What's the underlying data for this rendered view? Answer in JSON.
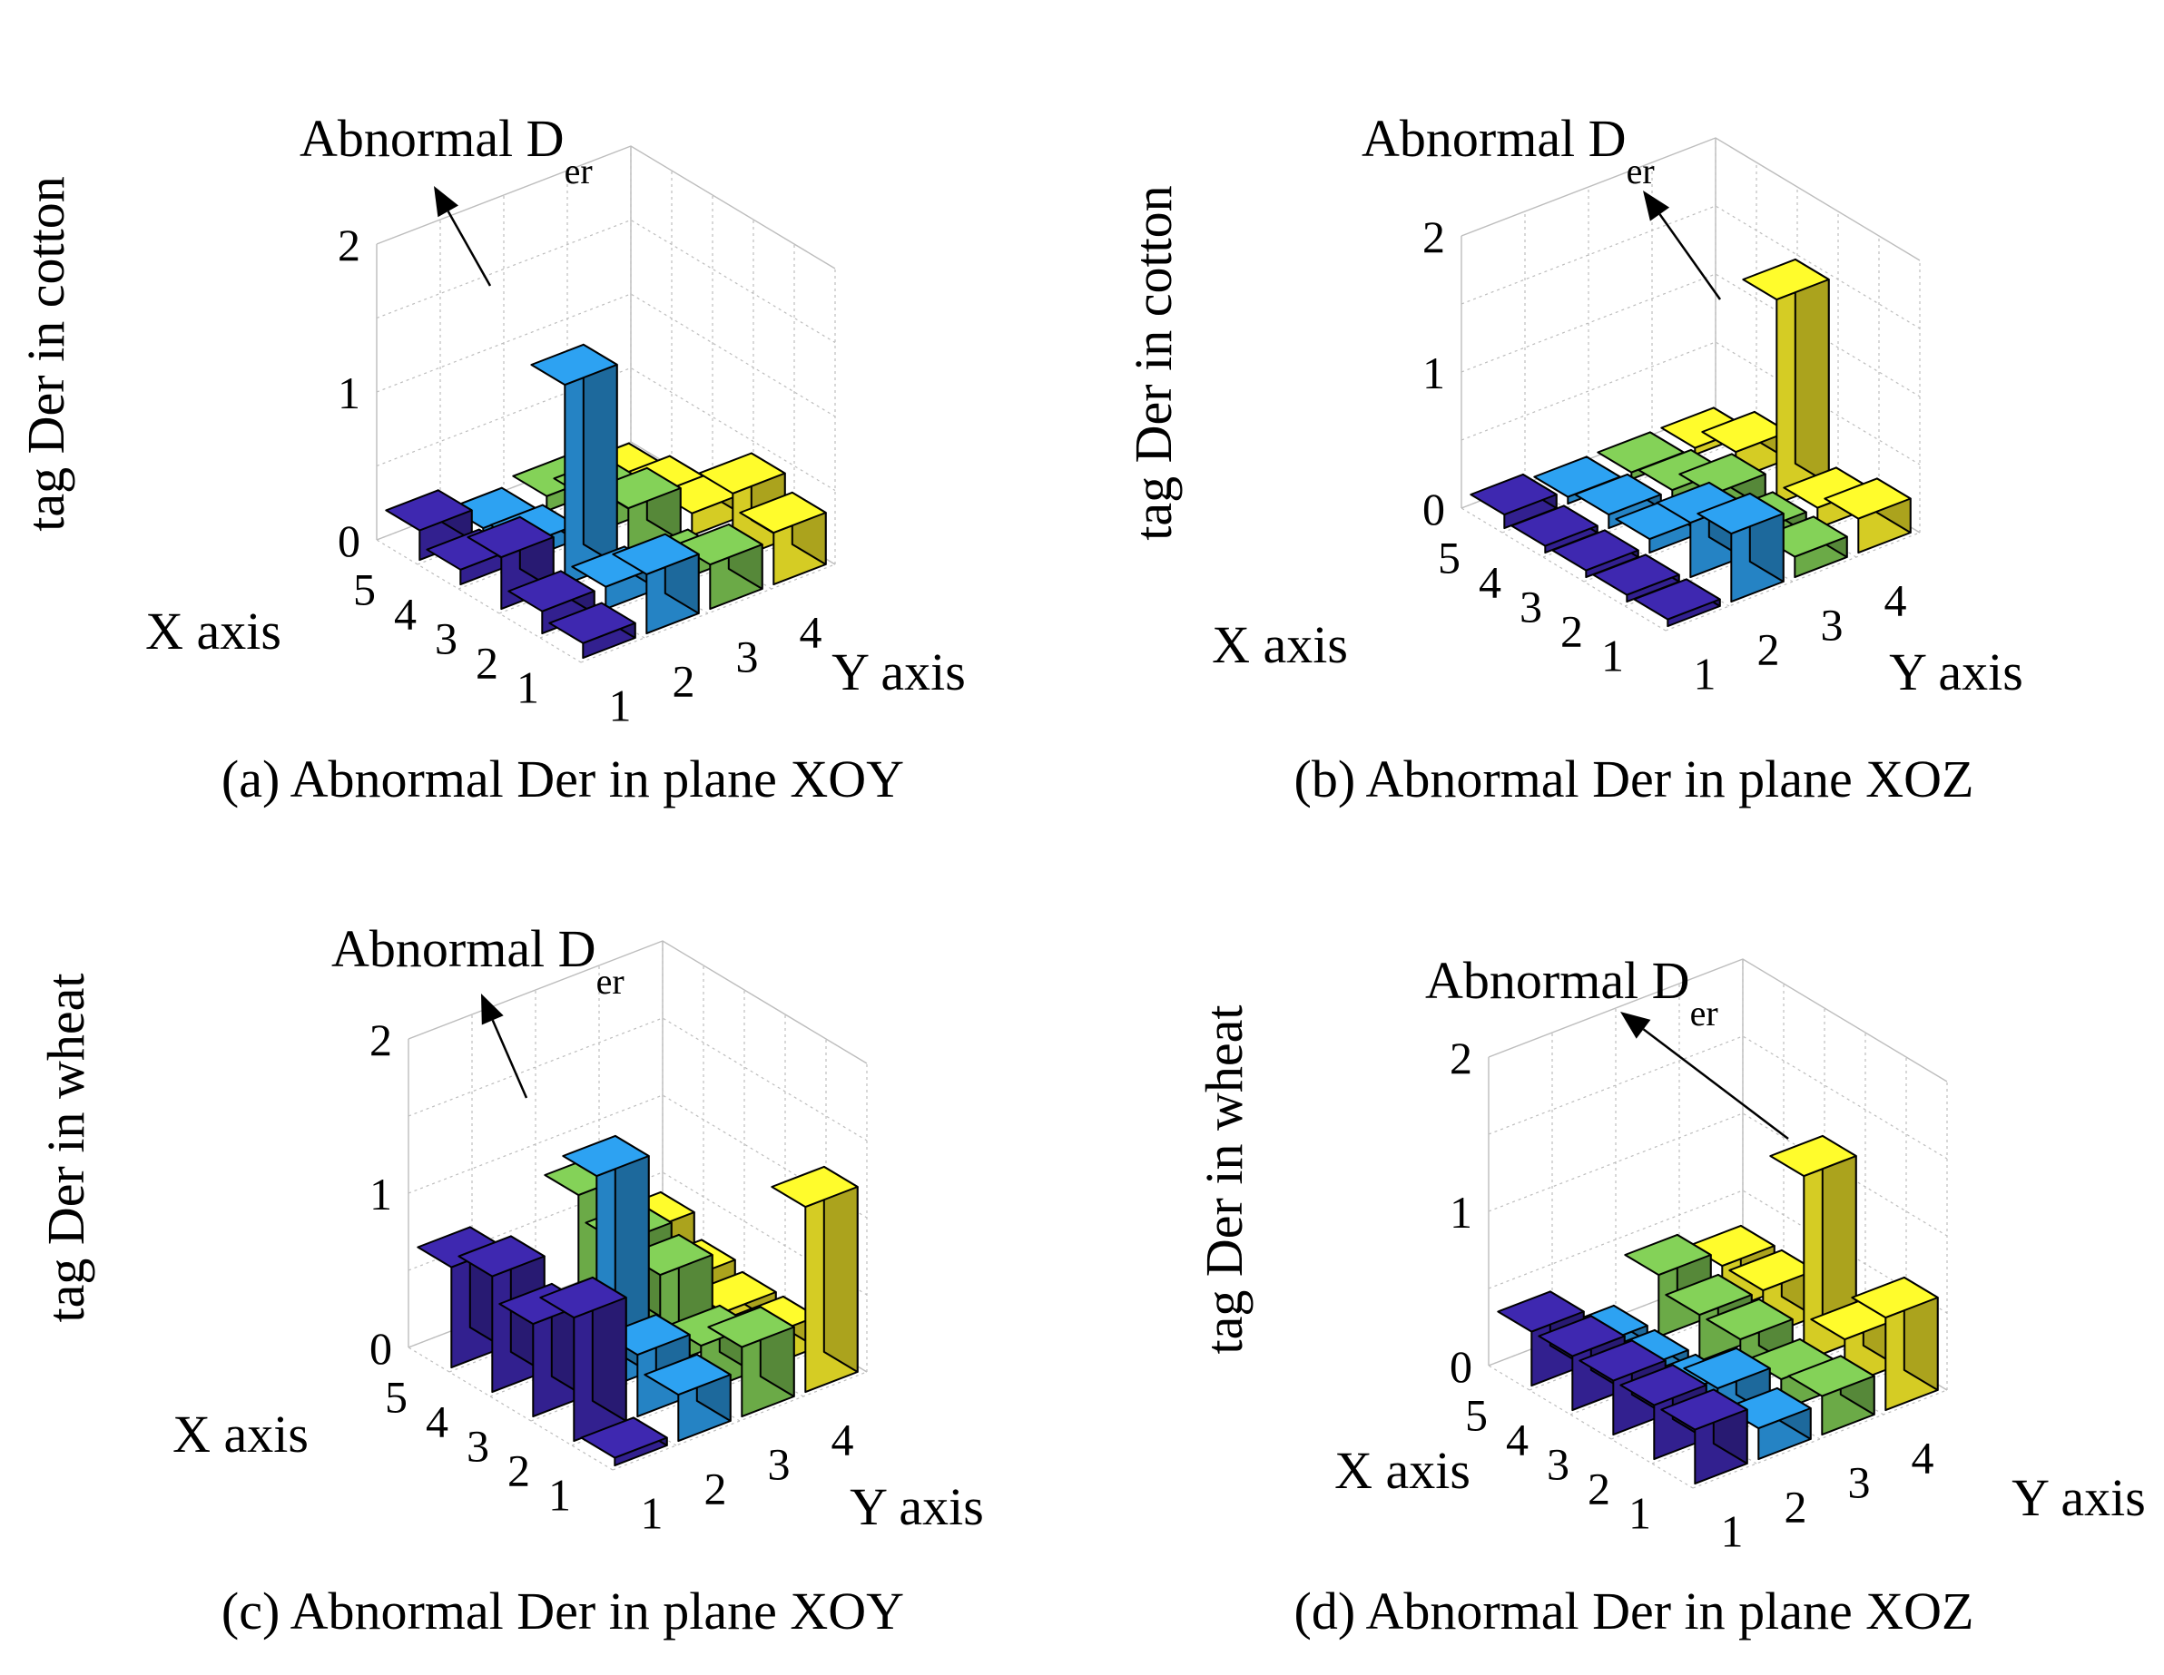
{
  "colors": {
    "y1": "#3b26a8",
    "y2": "#2b9ae6",
    "y3": "#7ec854",
    "y4": "#fbf02a",
    "grid": "#bdbdbd",
    "edge": "#000000",
    "background": "#ffffff"
  },
  "chart_data": [
    {
      "type": "bar3d",
      "panel_label": "(a) Abnormal Der in plane XOY",
      "zlabel": "tag Der in cotton",
      "xlabel": "X axis",
      "ylabel": "Y axis",
      "x_ticks": [
        "1",
        "2",
        "3",
        "4",
        "5"
      ],
      "y_ticks": [
        "1",
        "2",
        "3",
        "4"
      ],
      "z_ticks": [
        "0",
        "1",
        "2"
      ],
      "zlim": [
        0,
        2
      ],
      "annotation": {
        "text": "Abnormal D",
        "subscript": "er"
      },
      "grid": true,
      "series": [
        {
          "name": "1",
          "values": [
            0.1,
            0.15,
            0.35,
            0.1,
            0.2
          ]
        },
        {
          "name": "2",
          "values": [
            0.4,
            0.15,
            1.35,
            0.1,
            0.05
          ]
        },
        {
          "name": "3",
          "values": [
            0.3,
            0.1,
            0.35,
            0.25,
            0.1
          ]
        },
        {
          "name": "4",
          "values": [
            0.35,
            0.45,
            0.15,
            0.1,
            0.02
          ]
        }
      ]
    },
    {
      "type": "bar3d",
      "panel_label": "(b) Abnormal Der in plane XOZ",
      "zlabel": "tag Der in cotton",
      "xlabel": "X axis",
      "ylabel": "Y axis",
      "x_ticks": [
        "1",
        "2",
        "3",
        "4",
        "5"
      ],
      "y_ticks": [
        "1",
        "2",
        "3",
        "4"
      ],
      "z_ticks": [
        "0",
        "1",
        "2"
      ],
      "zlim": [
        0,
        2
      ],
      "annotation": {
        "text": "Abnormal D",
        "subscript": "er"
      },
      "grid": true,
      "series": [
        {
          "name": "1",
          "values": [
            0.05,
            0.05,
            0.05,
            0.05,
            0.1
          ]
        },
        {
          "name": "2",
          "values": [
            0.5,
            0.4,
            0.1,
            0.1,
            0.05
          ]
        },
        {
          "name": "3",
          "values": [
            0.15,
            0.15,
            0.25,
            0.1,
            0.05
          ]
        },
        {
          "name": "4",
          "values": [
            0.25,
            0.15,
            1.5,
            0.2,
            0.05
          ]
        }
      ]
    },
    {
      "type": "bar3d",
      "panel_label": "(c) Abnormal Der in plane XOY",
      "zlabel": "tag Der in wheat",
      "xlabel": "X axis",
      "ylabel": "Y axis",
      "x_ticks": [
        "1",
        "2",
        "3",
        "4",
        "5"
      ],
      "y_ticks": [
        "1",
        "2",
        "3",
        "4"
      ],
      "z_ticks": [
        "0",
        "1",
        "2"
      ],
      "zlim": [
        0,
        2
      ],
      "annotation": {
        "text": "Abnormal D",
        "subscript": "er"
      },
      "grid": true,
      "series": [
        {
          "name": "1",
          "values": [
            0.05,
            0.8,
            0.6,
            0.75,
            0.65
          ]
        },
        {
          "name": "2",
          "values": [
            0.3,
            0.4,
            1.4,
            0.1,
            0.1
          ]
        },
        {
          "name": "3",
          "values": [
            0.45,
            0.3,
            0.6,
            0.65,
            0.8
          ]
        },
        {
          "name": "4",
          "values": [
            1.2,
            0.2,
            0.2,
            0.25,
            0.4
          ]
        }
      ]
    },
    {
      "type": "bar3d",
      "panel_label": "(d) Abnormal Der in plane XOZ",
      "zlabel": "tag Der in wheat",
      "xlabel": "X axis",
      "ylabel": "Y axis",
      "x_ticks": [
        "1",
        "2",
        "3",
        "4",
        "5"
      ],
      "y_ticks": [
        "1",
        "2",
        "3",
        "4"
      ],
      "z_ticks": [
        "0",
        "1",
        "2"
      ],
      "zlim": [
        0,
        2
      ],
      "annotation": {
        "text": "Abnormal D",
        "subscript": "er"
      },
      "grid": true,
      "series": [
        {
          "name": "1",
          "values": [
            0.35,
            0.35,
            0.35,
            0.35,
            0.35
          ]
        },
        {
          "name": "2",
          "values": [
            0.2,
            0.3,
            0.1,
            0.1,
            0.1
          ]
        },
        {
          "name": "3",
          "values": [
            0.25,
            0.2,
            0.3,
            0.3,
            0.4
          ]
        },
        {
          "name": "4",
          "values": [
            0.6,
            0.3,
            1.2,
            0.3,
            0.3
          ]
        }
      ]
    }
  ]
}
